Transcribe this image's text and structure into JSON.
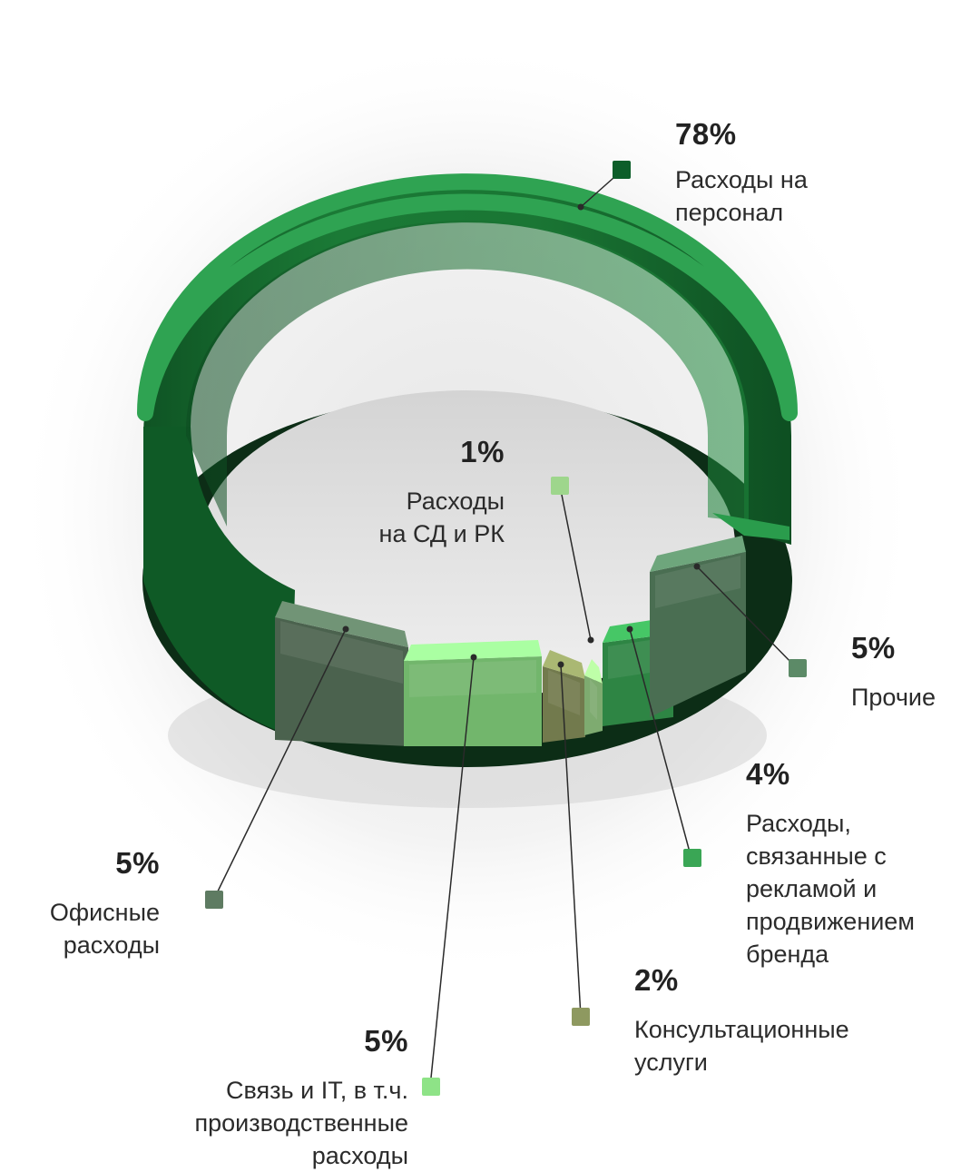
{
  "chart_data": {
    "type": "pie",
    "style": "3d ring",
    "series": [
      {
        "label": "Расходы на\nперсонал",
        "value": 78,
        "value_label": "78%",
        "color": "#0d5e2a"
      },
      {
        "label": "Прочие",
        "value": 5,
        "value_label": "5%",
        "color": "#5c8a67"
      },
      {
        "label": "Расходы,\nсвязанные с\nрекламой и\nпродвижением\nбренда",
        "value": 4,
        "value_label": "4%",
        "color": "#3aa655"
      },
      {
        "label": "Консультационные\nуслуги",
        "value": 2,
        "value_label": "2%",
        "color": "#8e9960"
      },
      {
        "label": "Связь и IT, в т.ч.\nпроизводственные\nрасходы",
        "value": 5,
        "value_label": "5%",
        "color": "#8ee387"
      },
      {
        "label": "Офисные\nрасходы",
        "value": 5,
        "value_label": "5%",
        "color": "#5e7b62"
      },
      {
        "label": "Расходы\nна СД и РК",
        "value": 1,
        "value_label": "1%",
        "color": "#9ed68c"
      }
    ]
  }
}
